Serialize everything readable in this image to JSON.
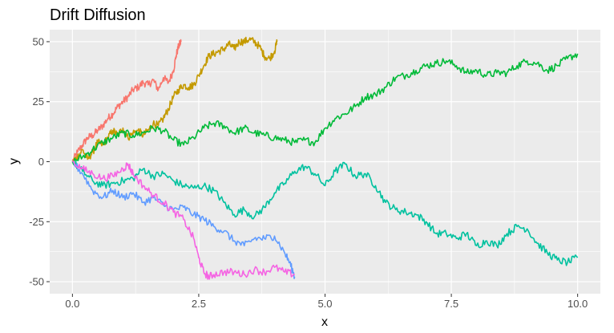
{
  "chart_data": {
    "type": "line",
    "title": "Drift Diffusion",
    "xlabel": "x",
    "ylabel": "y",
    "xlim": [
      -0.45,
      10.45
    ],
    "ylim": [
      -55,
      55
    ],
    "x_ticks": [
      0,
      2.5,
      5,
      7.5,
      10
    ],
    "x_tick_labels": [
      "0.0",
      "2.5",
      "5.0",
      "7.5",
      "10.0"
    ],
    "y_ticks": [
      -50,
      -25,
      0,
      25,
      50
    ],
    "y_tick_labels": [
      "-50",
      "-25",
      "0",
      "25",
      "50"
    ],
    "grid": true,
    "legend": "none",
    "background": "#ebebeb",
    "series": [
      {
        "color": "#f8766d",
        "points": [
          [
            0,
            0
          ],
          [
            0.1,
            4
          ],
          [
            0.2,
            7
          ],
          [
            0.3,
            10
          ],
          [
            0.4,
            11
          ],
          [
            0.5,
            13
          ],
          [
            0.6,
            15
          ],
          [
            0.7,
            18
          ],
          [
            0.8,
            20
          ],
          [
            0.9,
            23
          ],
          [
            1.0,
            25
          ],
          [
            1.1,
            27
          ],
          [
            1.2,
            30
          ],
          [
            1.3,
            31
          ],
          [
            1.4,
            33
          ],
          [
            1.5,
            32
          ],
          [
            1.6,
            34
          ],
          [
            1.7,
            30
          ],
          [
            1.8,
            35
          ],
          [
            1.9,
            33
          ],
          [
            2.0,
            38
          ],
          [
            2.05,
            44
          ],
          [
            2.1,
            48
          ],
          [
            2.15,
            50
          ]
        ]
      },
      {
        "color": "#c49a00",
        "points": [
          [
            0,
            0
          ],
          [
            0.1,
            2
          ],
          [
            0.2,
            5
          ],
          [
            0.3,
            1
          ],
          [
            0.4,
            4
          ],
          [
            0.5,
            8
          ],
          [
            0.6,
            7
          ],
          [
            0.7,
            10
          ],
          [
            0.8,
            13
          ],
          [
            0.9,
            11
          ],
          [
            1.0,
            14
          ],
          [
            1.1,
            10
          ],
          [
            1.2,
            12
          ],
          [
            1.3,
            13
          ],
          [
            1.4,
            11
          ],
          [
            1.5,
            13
          ],
          [
            1.6,
            16
          ],
          [
            1.7,
            15
          ],
          [
            1.8,
            18
          ],
          [
            1.9,
            22
          ],
          [
            2.0,
            27
          ],
          [
            2.1,
            30
          ],
          [
            2.2,
            32
          ],
          [
            2.3,
            31
          ],
          [
            2.4,
            32
          ],
          [
            2.5,
            36
          ],
          [
            2.6,
            40
          ],
          [
            2.7,
            44
          ],
          [
            2.8,
            45
          ],
          [
            2.9,
            46
          ],
          [
            3.0,
            47
          ],
          [
            3.1,
            49
          ],
          [
            3.2,
            47
          ],
          [
            3.3,
            50
          ],
          [
            3.4,
            50
          ],
          [
            3.5,
            51
          ],
          [
            3.6,
            50
          ],
          [
            3.7,
            48
          ],
          [
            3.8,
            44
          ],
          [
            3.9,
            43
          ],
          [
            4.0,
            46
          ],
          [
            4.05,
            50
          ]
        ]
      },
      {
        "color": "#00ba38",
        "points": [
          [
            0,
            0
          ],
          [
            0.2,
            2
          ],
          [
            0.4,
            5
          ],
          [
            0.6,
            8
          ],
          [
            0.8,
            10
          ],
          [
            1.0,
            12
          ],
          [
            1.2,
            11
          ],
          [
            1.4,
            12
          ],
          [
            1.6,
            14
          ],
          [
            1.8,
            13
          ],
          [
            2.0,
            9
          ],
          [
            2.2,
            7
          ],
          [
            2.4,
            10
          ],
          [
            2.6,
            14
          ],
          [
            2.8,
            16
          ],
          [
            3.0,
            15
          ],
          [
            3.2,
            12
          ],
          [
            3.4,
            14
          ],
          [
            3.6,
            12
          ],
          [
            3.8,
            11
          ],
          [
            4.0,
            10
          ],
          [
            4.2,
            9
          ],
          [
            4.4,
            8
          ],
          [
            4.6,
            9
          ],
          [
            4.8,
            8
          ],
          [
            5.0,
            14
          ],
          [
            5.2,
            18
          ],
          [
            5.4,
            20
          ],
          [
            5.6,
            23
          ],
          [
            5.8,
            27
          ],
          [
            6.0,
            28
          ],
          [
            6.2,
            31
          ],
          [
            6.4,
            35
          ],
          [
            6.6,
            36
          ],
          [
            6.8,
            38
          ],
          [
            7.0,
            40
          ],
          [
            7.2,
            41
          ],
          [
            7.4,
            42
          ],
          [
            7.6,
            40
          ],
          [
            7.8,
            37
          ],
          [
            8.0,
            38
          ],
          [
            8.2,
            36
          ],
          [
            8.4,
            37
          ],
          [
            8.6,
            37
          ],
          [
            8.8,
            40
          ],
          [
            9.0,
            42
          ],
          [
            9.2,
            41
          ],
          [
            9.4,
            38
          ],
          [
            9.6,
            40
          ],
          [
            9.8,
            43
          ],
          [
            10.0,
            45
          ]
        ]
      },
      {
        "color": "#00c19f",
        "points": [
          [
            0,
            0
          ],
          [
            0.2,
            -4
          ],
          [
            0.4,
            -8
          ],
          [
            0.6,
            -10
          ],
          [
            0.8,
            -9
          ],
          [
            1.0,
            -8
          ],
          [
            1.2,
            -7
          ],
          [
            1.4,
            -3
          ],
          [
            1.6,
            -6
          ],
          [
            1.8,
            -5
          ],
          [
            2.0,
            -8
          ],
          [
            2.2,
            -10
          ],
          [
            2.4,
            -11
          ],
          [
            2.6,
            -10
          ],
          [
            2.8,
            -12
          ],
          [
            3.0,
            -17
          ],
          [
            3.2,
            -22
          ],
          [
            3.4,
            -20
          ],
          [
            3.6,
            -23
          ],
          [
            3.8,
            -19
          ],
          [
            4.0,
            -13
          ],
          [
            4.2,
            -9
          ],
          [
            4.4,
            -4
          ],
          [
            4.6,
            -2
          ],
          [
            4.8,
            -5
          ],
          [
            5.0,
            -10
          ],
          [
            5.2,
            -4
          ],
          [
            5.4,
            -1
          ],
          [
            5.6,
            -6
          ],
          [
            5.8,
            -5
          ],
          [
            6.0,
            -10
          ],
          [
            6.2,
            -17
          ],
          [
            6.4,
            -20
          ],
          [
            6.6,
            -21
          ],
          [
            6.8,
            -22
          ],
          [
            7.0,
            -25
          ],
          [
            7.2,
            -30
          ],
          [
            7.4,
            -30
          ],
          [
            7.6,
            -32
          ],
          [
            7.8,
            -30
          ],
          [
            8.0,
            -35
          ],
          [
            8.2,
            -33
          ],
          [
            8.4,
            -35
          ],
          [
            8.6,
            -30
          ],
          [
            8.8,
            -27
          ],
          [
            9.0,
            -28
          ],
          [
            9.2,
            -34
          ],
          [
            9.4,
            -38
          ],
          [
            9.6,
            -41
          ],
          [
            9.8,
            -42
          ],
          [
            10.0,
            -40
          ]
        ]
      },
      {
        "color": "#619cff",
        "points": [
          [
            0,
            0
          ],
          [
            0.2,
            -5
          ],
          [
            0.4,
            -12
          ],
          [
            0.6,
            -15
          ],
          [
            0.8,
            -12
          ],
          [
            1.0,
            -15
          ],
          [
            1.2,
            -13
          ],
          [
            1.4,
            -17
          ],
          [
            1.6,
            -15
          ],
          [
            1.8,
            -18
          ],
          [
            2.0,
            -20
          ],
          [
            2.2,
            -19
          ],
          [
            2.4,
            -22
          ],
          [
            2.6,
            -24
          ],
          [
            2.8,
            -27
          ],
          [
            3.0,
            -29
          ],
          [
            3.2,
            -33
          ],
          [
            3.4,
            -35
          ],
          [
            3.6,
            -32
          ],
          [
            3.8,
            -32
          ],
          [
            4.0,
            -31
          ],
          [
            4.2,
            -38
          ],
          [
            4.3,
            -42
          ],
          [
            4.4,
            -48
          ]
        ]
      },
      {
        "color": "#f564e3",
        "points": [
          [
            0,
            0
          ],
          [
            0.2,
            -3
          ],
          [
            0.4,
            -5
          ],
          [
            0.6,
            -7
          ],
          [
            0.8,
            -6
          ],
          [
            1.0,
            -3
          ],
          [
            1.1,
            -1
          ],
          [
            1.2,
            -5
          ],
          [
            1.4,
            -10
          ],
          [
            1.6,
            -14
          ],
          [
            1.8,
            -17
          ],
          [
            2.0,
            -21
          ],
          [
            2.2,
            -24
          ],
          [
            2.4,
            -32
          ],
          [
            2.5,
            -40
          ],
          [
            2.6,
            -46
          ],
          [
            2.7,
            -48
          ],
          [
            2.8,
            -47
          ],
          [
            3.0,
            -46
          ],
          [
            3.2,
            -46
          ],
          [
            3.4,
            -47
          ],
          [
            3.6,
            -45
          ],
          [
            3.8,
            -46
          ],
          [
            4.0,
            -44
          ],
          [
            4.2,
            -46
          ],
          [
            4.4,
            -47
          ]
        ]
      }
    ]
  }
}
